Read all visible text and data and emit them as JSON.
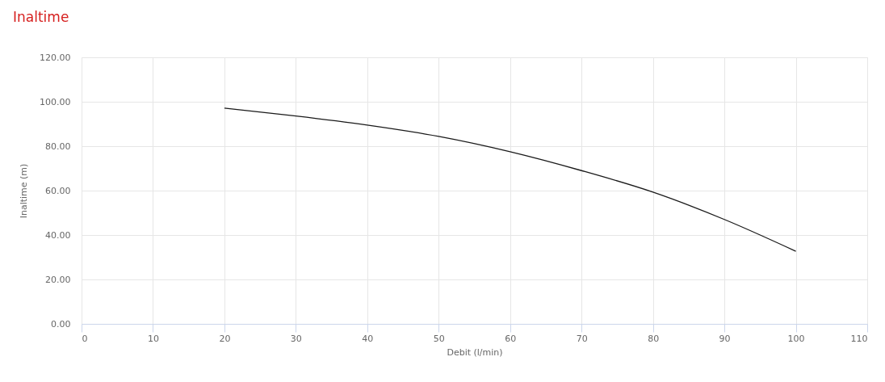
{
  "chart_data": {
    "type": "line",
    "title": "Inaltime",
    "xlabel": "Debit (l/min)",
    "ylabel": "Inaltime (m)",
    "x": [
      20,
      30,
      40,
      50,
      60,
      70,
      80,
      90,
      100
    ],
    "series": [
      {
        "color": "#1a1a1a",
        "values": [
          97.1,
          93.6,
          89.5,
          84.4,
          77.5,
          69.0,
          59.3,
          47.0,
          32.7
        ]
      }
    ],
    "xlim": [
      0,
      110
    ],
    "xticks": [
      0,
      10,
      20,
      30,
      40,
      50,
      60,
      70,
      80,
      90,
      100,
      110
    ],
    "ylim": [
      0,
      120
    ],
    "yticks": [
      {
        "value": 0,
        "label": "0.00"
      },
      {
        "value": 20,
        "label": "20.00"
      },
      {
        "value": 40,
        "label": "40.00"
      },
      {
        "value": 60,
        "label": "60.00"
      },
      {
        "value": 80,
        "label": "80.00"
      },
      {
        "value": 100,
        "label": "100.00"
      },
      {
        "value": 120,
        "label": "120.00"
      }
    ],
    "grid": true
  }
}
